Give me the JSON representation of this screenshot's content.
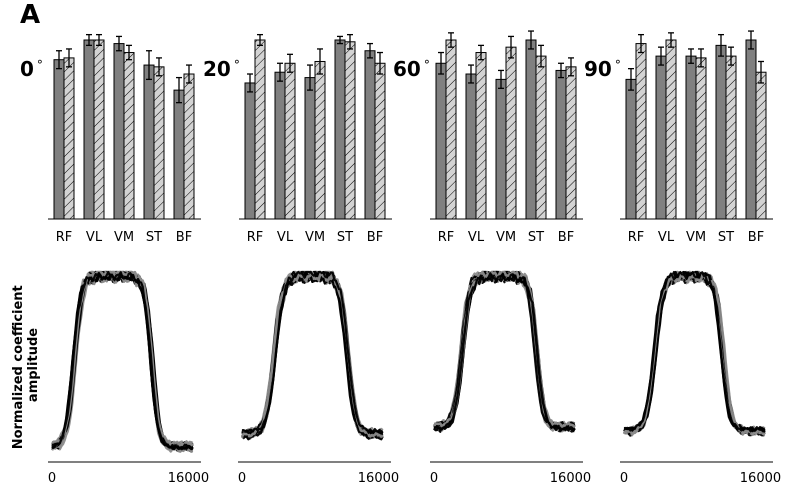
{
  "figure": {
    "panel_label": "A",
    "ylabel": "Normalized coefficient amplitude"
  },
  "chart_data": [
    {
      "type": "bar",
      "angle_label": "0°",
      "categories": [
        "RF",
        "VL",
        "VM",
        "ST",
        "BF"
      ],
      "series": [
        {
          "fill": "solid-gray",
          "values": [
            0.89,
            1.0,
            0.98,
            0.86,
            0.72
          ],
          "errors": [
            0.05,
            0.03,
            0.04,
            0.08,
            0.07
          ]
        },
        {
          "fill": "hatched-light",
          "values": [
            0.9,
            1.0,
            0.93,
            0.85,
            0.81
          ],
          "errors": [
            0.05,
            0.03,
            0.04,
            0.05,
            0.05
          ]
        }
      ],
      "ylim": [
        0,
        1.1
      ]
    },
    {
      "type": "bar",
      "angle_label": "20°",
      "categories": [
        "RF",
        "VL",
        "VM",
        "ST",
        "BF"
      ],
      "series": [
        {
          "fill": "solid-gray",
          "values": [
            0.76,
            0.82,
            0.79,
            1.0,
            0.94
          ],
          "errors": [
            0.05,
            0.05,
            0.07,
            0.02,
            0.04
          ]
        },
        {
          "fill": "hatched-light",
          "values": [
            1.0,
            0.87,
            0.88,
            0.99,
            0.87
          ],
          "errors": [
            0.03,
            0.05,
            0.07,
            0.04,
            0.06
          ]
        }
      ],
      "ylim": [
        0,
        1.1
      ]
    },
    {
      "type": "bar",
      "angle_label": "60°",
      "categories": [
        "RF",
        "VL",
        "VM",
        "ST",
        "BF"
      ],
      "series": [
        {
          "fill": "solid-gray",
          "values": [
            0.87,
            0.81,
            0.78,
            1.0,
            0.83
          ],
          "errors": [
            0.06,
            0.05,
            0.05,
            0.05,
            0.04
          ]
        },
        {
          "fill": "hatched-light",
          "values": [
            1.0,
            0.93,
            0.96,
            0.91,
            0.85
          ],
          "errors": [
            0.04,
            0.04,
            0.06,
            0.06,
            0.05
          ]
        }
      ],
      "ylim": [
        0,
        1.1
      ]
    },
    {
      "type": "bar",
      "angle_label": "90°",
      "categories": [
        "RF",
        "VL",
        "VM",
        "ST",
        "BF"
      ],
      "series": [
        {
          "fill": "solid-gray",
          "values": [
            0.78,
            0.91,
            0.91,
            0.97,
            1.0
          ],
          "errors": [
            0.06,
            0.05,
            0.04,
            0.06,
            0.05
          ]
        },
        {
          "fill": "hatched-light",
          "values": [
            0.98,
            1.0,
            0.9,
            0.91,
            0.82
          ],
          "errors": [
            0.05,
            0.04,
            0.05,
            0.05,
            0.06
          ]
        }
      ],
      "ylim": [
        0,
        1.1
      ]
    },
    {
      "type": "line",
      "xticks": [
        "0",
        "16000"
      ],
      "xlim": [
        0,
        17000
      ],
      "shape": {
        "rise_center": 2600,
        "fall_center": 11700,
        "width": 1000,
        "baseline": 0.03,
        "peak_at": 5400
      },
      "series_colors": [
        "#8c8c8c",
        "#000000"
      ]
    },
    {
      "type": "line",
      "xticks": [
        "0",
        "16000"
      ],
      "xlim": [
        0,
        17000
      ],
      "shape": {
        "rise_center": 3800,
        "fall_center": 12400,
        "width": 1100,
        "baseline": 0.1,
        "peak_at": 9000
      },
      "series_colors": [
        "#8c8c8c",
        "#000000"
      ]
    },
    {
      "type": "line",
      "xticks": [
        "0",
        "16000"
      ],
      "xlim": [
        0,
        17000
      ],
      "shape": {
        "rise_center": 3300,
        "fall_center": 12000,
        "width": 1000,
        "baseline": 0.14,
        "peak_at": 9000
      },
      "series_colors": [
        "#8c8c8c",
        "#000000"
      ]
    },
    {
      "type": "line",
      "xticks": [
        "0",
        "16000"
      ],
      "xlim": [
        0,
        17000
      ],
      "shape": {
        "rise_center": 3600,
        "fall_center": 11600,
        "width": 1050,
        "baseline": 0.12,
        "peak_at": 8800
      },
      "series_colors": [
        "#8c8c8c",
        "#000000"
      ]
    }
  ],
  "colors": {
    "bar_solid": "#808080",
    "bar_hatched": "#d3d3d3",
    "line_black": "#000000",
    "line_gray": "#8c8c8c"
  }
}
